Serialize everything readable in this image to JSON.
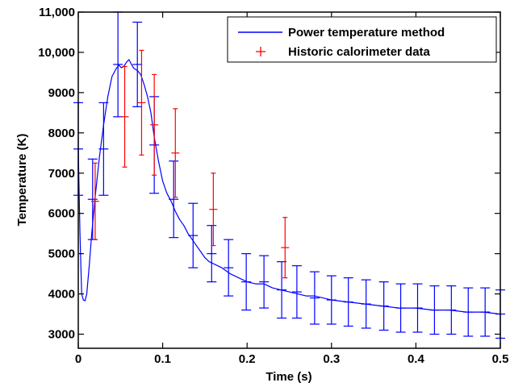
{
  "chart_data": {
    "type": "line",
    "xlabel": "Time (s)",
    "ylabel": "Temperature (K)",
    "xlim": [
      0,
      0.5
    ],
    "ylim": [
      2650,
      11000
    ],
    "x_ticks": [
      {
        "value": 0,
        "label": "0"
      },
      {
        "value": 0.1,
        "label": "0.1"
      },
      {
        "value": 0.2,
        "label": "0.2"
      },
      {
        "value": 0.3,
        "label": "0.3"
      },
      {
        "value": 0.4,
        "label": "0.4"
      },
      {
        "value": 0.5,
        "label": "0.5"
      }
    ],
    "y_ticks": [
      {
        "value": 3000,
        "label": "3000"
      },
      {
        "value": 4000,
        "label": "4000"
      },
      {
        "value": 5000,
        "label": "5000"
      },
      {
        "value": 6000,
        "label": "6000"
      },
      {
        "value": 7000,
        "label": "7000"
      },
      {
        "value": 8000,
        "label": "8000"
      },
      {
        "value": 9000,
        "label": "9000"
      },
      {
        "value": 10000,
        "label": "10,000"
      },
      {
        "value": 11000,
        "label": "11,000"
      }
    ],
    "grid": false,
    "legend": {
      "position": "top-right",
      "entries": [
        {
          "label": "Power temperature method",
          "marker": "line",
          "color": "#0000ff"
        },
        {
          "label": "Historic calorimeter data",
          "marker": "plus",
          "color": "#ff0000"
        }
      ]
    },
    "series": [
      {
        "name": "Power temperature method",
        "color": "#0000ff",
        "style": "line",
        "x": [
          0,
          0.002,
          0.004,
          0.006,
          0.008,
          0.01,
          0.013,
          0.016,
          0.02,
          0.025,
          0.03,
          0.035,
          0.04,
          0.045,
          0.048,
          0.051,
          0.054,
          0.057,
          0.06,
          0.063,
          0.066,
          0.07,
          0.074,
          0.078,
          0.082,
          0.086,
          0.09,
          0.095,
          0.1,
          0.105,
          0.11,
          0.115,
          0.12,
          0.125,
          0.13,
          0.135,
          0.14,
          0.145,
          0.15,
          0.155,
          0.16,
          0.17,
          0.18,
          0.19,
          0.2,
          0.21,
          0.22,
          0.23,
          0.24,
          0.25,
          0.26,
          0.27,
          0.28,
          0.29,
          0.3,
          0.32,
          0.34,
          0.36,
          0.38,
          0.4,
          0.42,
          0.44,
          0.46,
          0.48,
          0.5
        ],
        "y": [
          7600,
          5500,
          4000,
          3850,
          3830,
          4000,
          4700,
          5500,
          6400,
          7400,
          8200,
          8900,
          9400,
          9600,
          9680,
          9620,
          9650,
          9750,
          9820,
          9700,
          9600,
          9550,
          9450,
          9200,
          8900,
          8500,
          7900,
          7300,
          6800,
          6500,
          6300,
          6050,
          5850,
          5700,
          5500,
          5350,
          5200,
          5050,
          4900,
          4800,
          4750,
          4650,
          4500,
          4400,
          4300,
          4250,
          4250,
          4150,
          4100,
          4050,
          4000,
          3950,
          3950,
          3900,
          3850,
          3800,
          3750,
          3700,
          3650,
          3650,
          3600,
          3600,
          3550,
          3550,
          3500
        ]
      },
      {
        "name": "Power temperature method",
        "color": "#0000ff",
        "style": "errorbar",
        "x": [
          0,
          0.017,
          0.03,
          0.047,
          0.07,
          0.09,
          0.113,
          0.136,
          0.158,
          0.178,
          0.199,
          0.22,
          0.241,
          0.259,
          0.28,
          0.3,
          0.32,
          0.341,
          0.362,
          0.382,
          0.402,
          0.422,
          0.442,
          0.462,
          0.482,
          0.5
        ],
        "y": [
          7600,
          6350,
          7600,
          9700,
          9700,
          7700,
          6350,
          5450,
          5000,
          4650,
          4300,
          4300,
          4100,
          4050,
          3900,
          3850,
          3800,
          3750,
          3700,
          3650,
          3650,
          3600,
          3600,
          3550,
          3550,
          3500
        ],
        "err": [
          1150,
          1000,
          1150,
          1300,
          1050,
          1200,
          950,
          800,
          700,
          700,
          700,
          650,
          700,
          650,
          650,
          600,
          600,
          600,
          600,
          600,
          600,
          600,
          600,
          600,
          600,
          600
        ]
      },
      {
        "name": "Historic calorimeter data",
        "color": "#ff0000",
        "style": "errorbar",
        "marker": "plus",
        "x": [
          0.02,
          0.055,
          0.075,
          0.09,
          0.115,
          0.16,
          0.245
        ],
        "y": [
          6300,
          8400,
          8750,
          8200,
          7500,
          6100,
          5150
        ],
        "err": [
          950,
          1250,
          1300,
          1250,
          1100,
          900,
          750
        ]
      }
    ]
  }
}
